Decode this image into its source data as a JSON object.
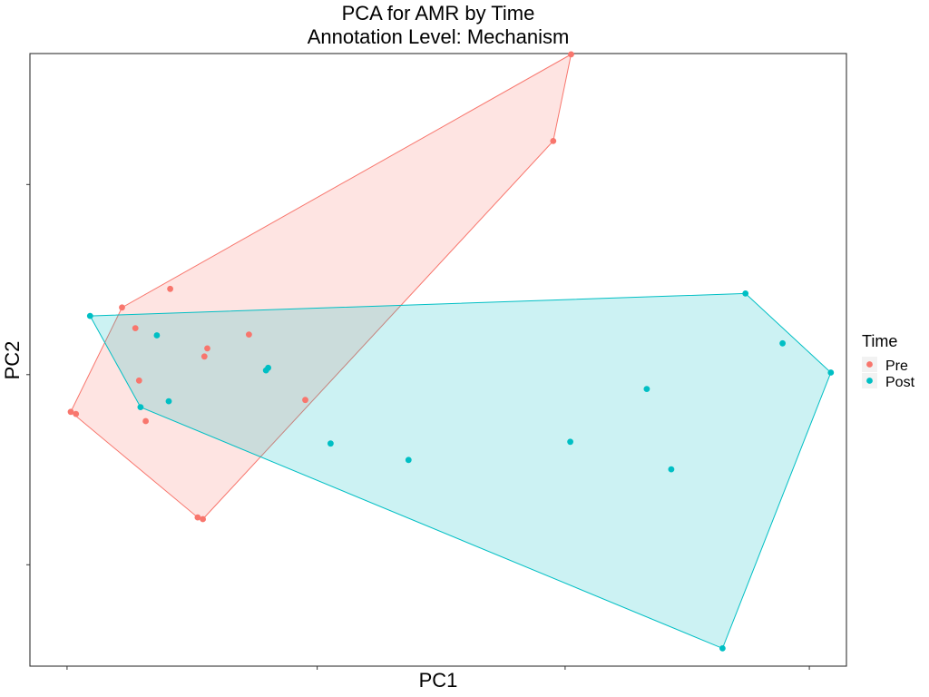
{
  "chart_data": {
    "type": "scatter",
    "title": "PCA for AMR by Time",
    "subtitle": "Annotation Level: Mechanism",
    "xlabel": "PC1",
    "ylabel": "PC2",
    "xlim": [
      -0.5,
      10.5
    ],
    "ylim": [
      -6.9,
      7.6
    ],
    "grid": false,
    "hull_polygons": true,
    "legend": {
      "title": "Time",
      "placement": "right",
      "entries": [
        "Pre",
        "Post"
      ]
    },
    "series": [
      {
        "name": "Pre",
        "color": "#F8766D",
        "points": [
          {
            "x": 0.74,
            "y": 1.59
          },
          {
            "x": 1.39,
            "y": 2.03
          },
          {
            "x": 0.92,
            "y": 1.1
          },
          {
            "x": 1.89,
            "y": 0.62
          },
          {
            "x": 2.45,
            "y": 0.95
          },
          {
            "x": 1.85,
            "y": 0.43
          },
          {
            "x": 0.97,
            "y": -0.14
          },
          {
            "x": 0.05,
            "y": -0.88
          },
          {
            "x": 0.12,
            "y": -0.93
          },
          {
            "x": 1.06,
            "y": -1.1
          },
          {
            "x": 3.21,
            "y": -0.6
          },
          {
            "x": 1.76,
            "y": -3.38
          },
          {
            "x": 1.83,
            "y": -3.42
          },
          {
            "x": 6.55,
            "y": 5.53
          },
          {
            "x": 6.79,
            "y": 7.58
          }
        ]
      },
      {
        "name": "Post",
        "color": "#00BFC4",
        "points": [
          {
            "x": 0.31,
            "y": 1.39
          },
          {
            "x": 1.21,
            "y": 0.93
          },
          {
            "x": 2.68,
            "y": 0.1
          },
          {
            "x": 2.71,
            "y": 0.16
          },
          {
            "x": 1.37,
            "y": -0.63
          },
          {
            "x": 0.99,
            "y": -0.77
          },
          {
            "x": 3.55,
            "y": -1.63
          },
          {
            "x": 4.6,
            "y": -2.02
          },
          {
            "x": 6.78,
            "y": -1.59
          },
          {
            "x": 7.81,
            "y": -0.34
          },
          {
            "x": 8.14,
            "y": -2.24
          },
          {
            "x": 9.14,
            "y": 1.92
          },
          {
            "x": 9.64,
            "y": 0.74
          },
          {
            "x": 10.29,
            "y": 0.05
          },
          {
            "x": 8.83,
            "y": -6.48
          }
        ]
      }
    ]
  }
}
